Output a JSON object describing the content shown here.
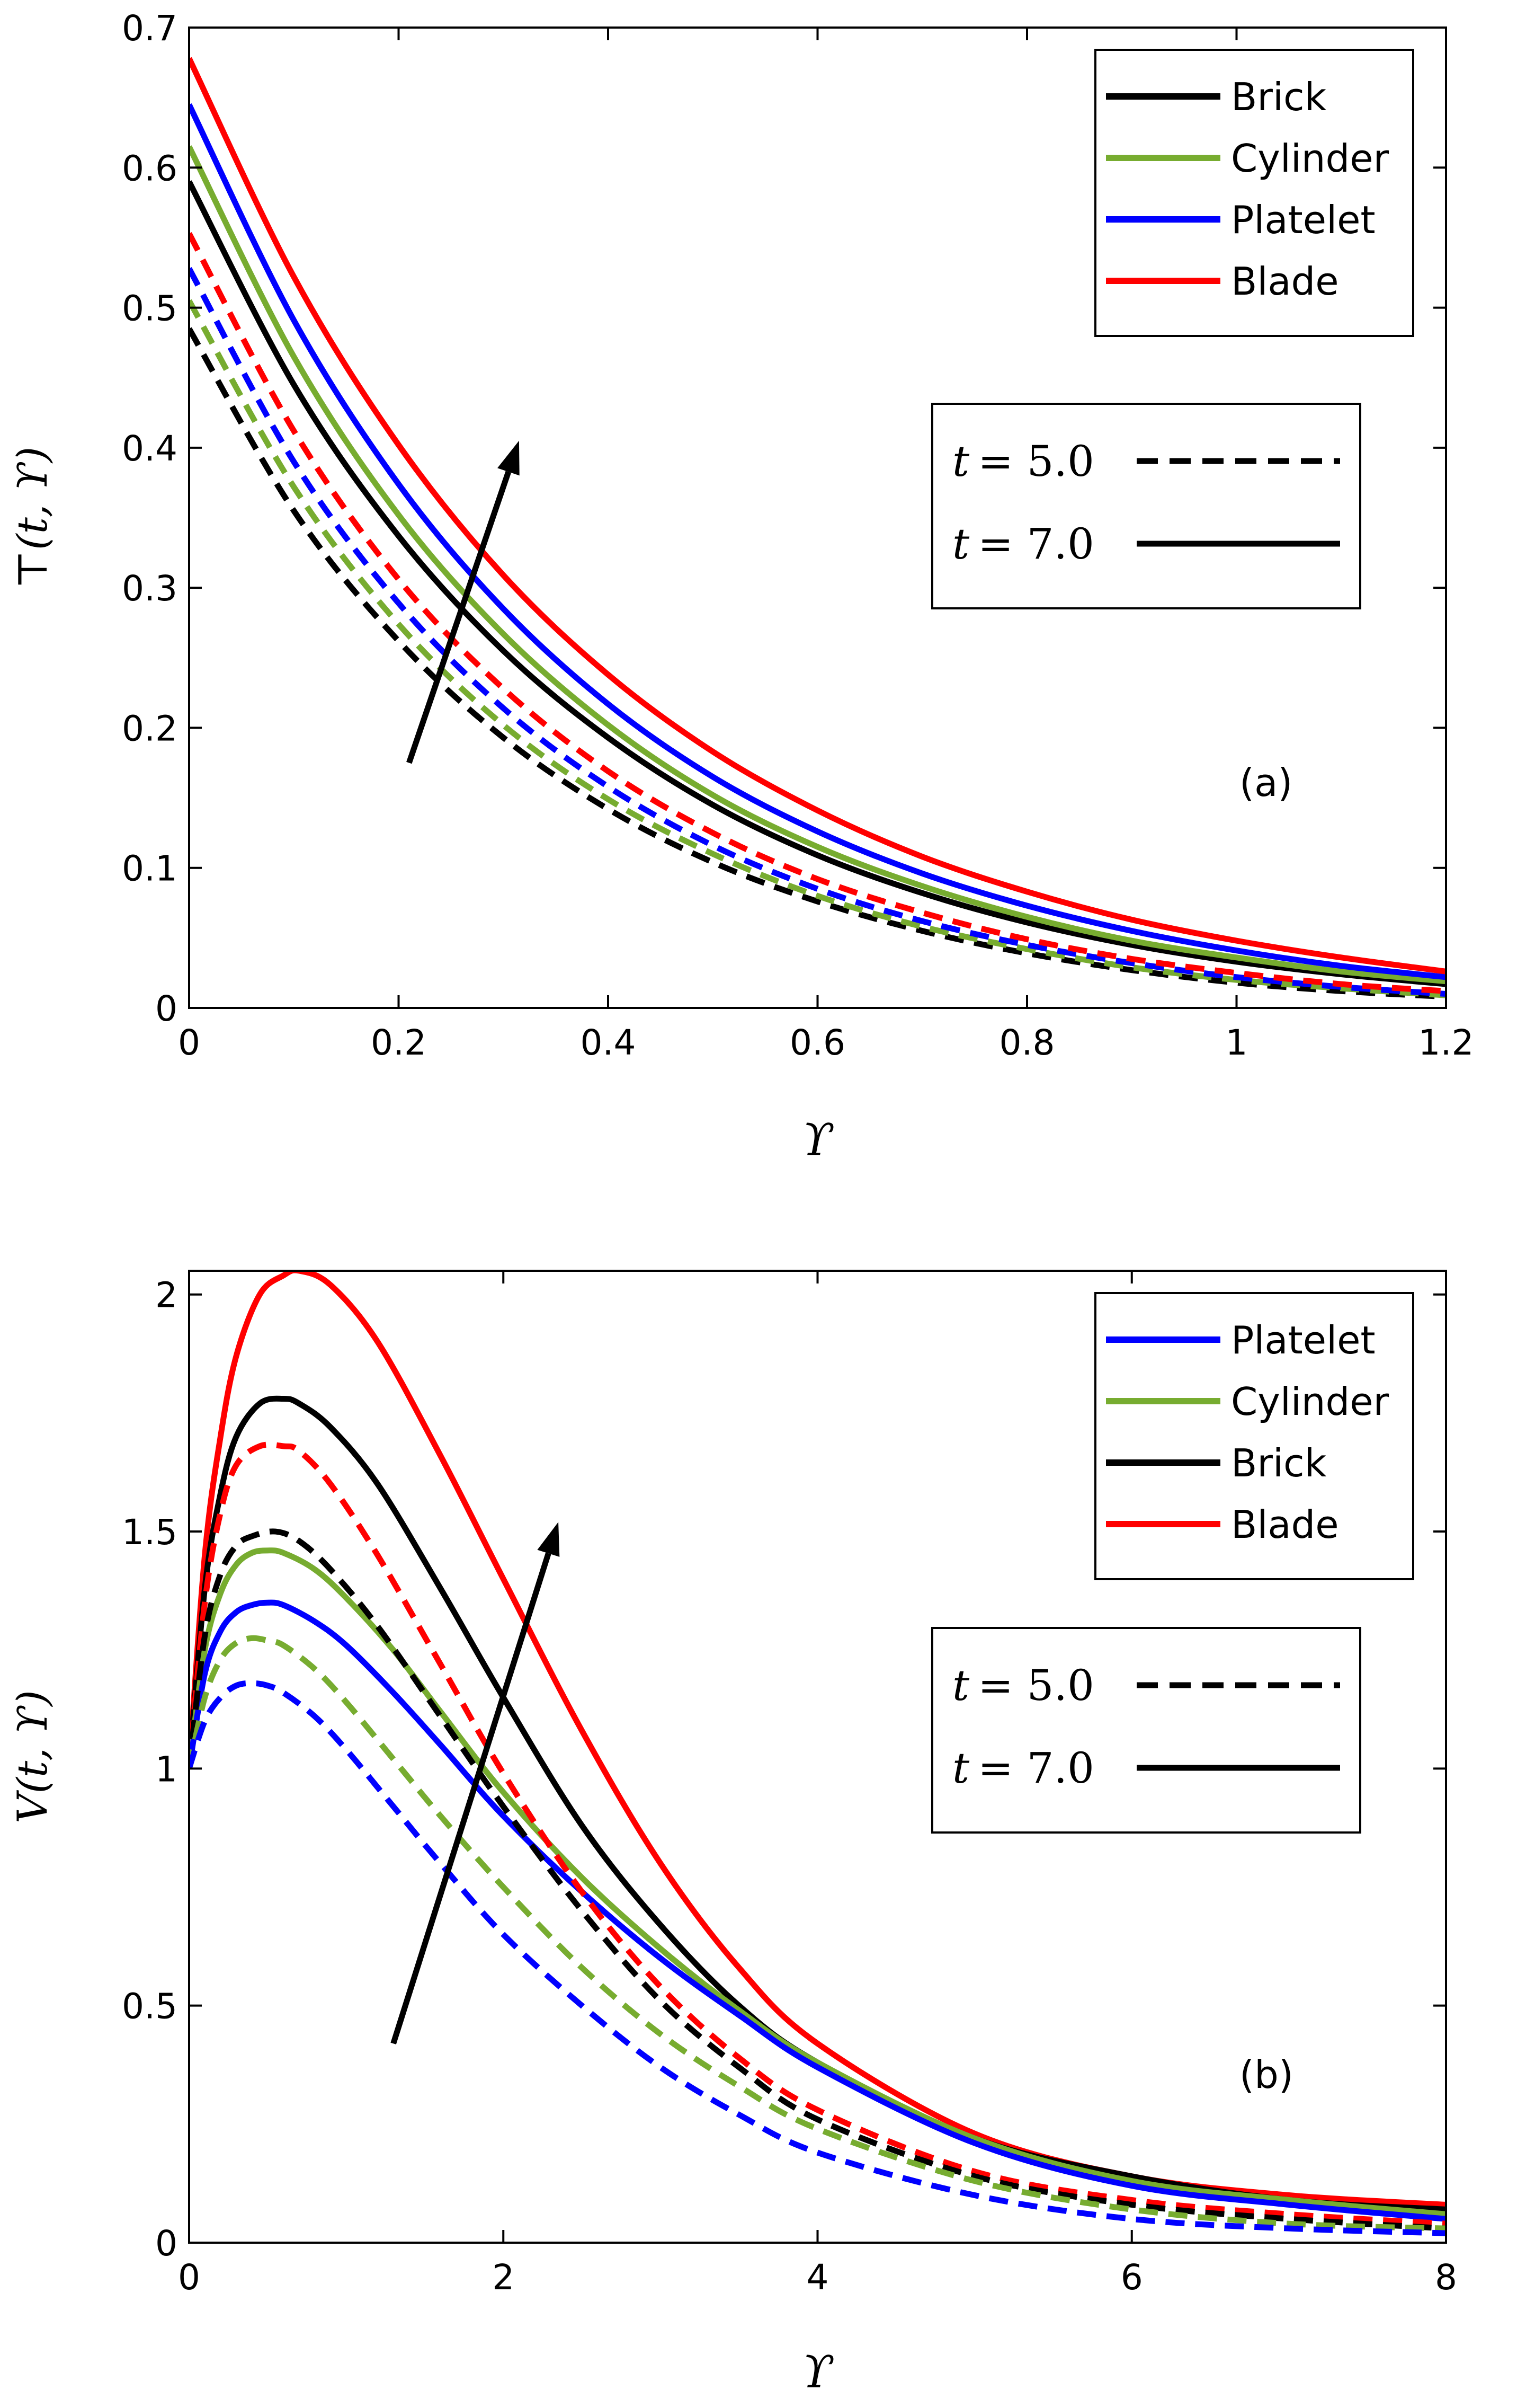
{
  "chart_data": [
    {
      "type": "line",
      "panel_label": "(a)",
      "xlabel": "ϒ",
      "ylabel": "T(t, ϒ)",
      "ylabel_parts": {
        "symbol": "⊤",
        "args": "(t, ϒ)"
      },
      "xlim": [
        0,
        1.2
      ],
      "ylim": [
        0,
        0.7
      ],
      "xticks": [
        0,
        0.2,
        0.4,
        0.6,
        0.8,
        1,
        1.2
      ],
      "xtick_labels": [
        "0",
        "0.2",
        "0.4",
        "0.6",
        "0.8",
        "1",
        "1.2"
      ],
      "yticks": [
        0,
        0.1,
        0.2,
        0.3,
        0.4,
        0.5,
        0.6,
        0.7
      ],
      "ytick_labels": [
        "0",
        "0.1",
        "0.2",
        "0.3",
        "0.4",
        "0.5",
        "0.6",
        "0.7"
      ],
      "legend": [
        {
          "label": "Brick",
          "color": "#000000"
        },
        {
          "label": "Cylinder",
          "color": "#77ac30"
        },
        {
          "label": "Platelet",
          "color": "#0000ff"
        },
        {
          "label": "Blade",
          "color": "#ff0000"
        }
      ],
      "time_legend": [
        {
          "var": "t",
          "value": "= 5.0",
          "style": "dashed"
        },
        {
          "var": "t",
          "value": "= 7.0",
          "style": "solid"
        }
      ],
      "arrow": {
        "from": [
          0.21,
          0.175
        ],
        "to": [
          0.315,
          0.405
        ]
      },
      "series": [
        {
          "name": "Brick",
          "t": 7.0,
          "color": "#000000",
          "style": "solid",
          "x": [
            0,
            0.1,
            0.2,
            0.3,
            0.4,
            0.5,
            0.6,
            0.7,
            0.8,
            0.9,
            1.0,
            1.1,
            1.2
          ],
          "y": [
            0.59,
            0.445,
            0.337,
            0.255,
            0.193,
            0.145,
            0.109,
            0.082,
            0.061,
            0.045,
            0.033,
            0.024,
            0.017
          ]
        },
        {
          "name": "Cylinder",
          "t": 7.0,
          "color": "#77ac30",
          "style": "solid",
          "x": [
            0,
            0.1,
            0.2,
            0.3,
            0.4,
            0.5,
            0.6,
            0.7,
            0.8,
            0.9,
            1.0,
            1.1,
            1.2
          ],
          "y": [
            0.615,
            0.465,
            0.352,
            0.267,
            0.202,
            0.152,
            0.115,
            0.087,
            0.065,
            0.048,
            0.036,
            0.026,
            0.019
          ]
        },
        {
          "name": "Platelet",
          "t": 7.0,
          "color": "#0000ff",
          "style": "solid",
          "x": [
            0,
            0.1,
            0.2,
            0.3,
            0.4,
            0.5,
            0.6,
            0.7,
            0.8,
            0.9,
            1.0,
            1.1,
            1.2
          ],
          "y": [
            0.645,
            0.491,
            0.374,
            0.285,
            0.217,
            0.165,
            0.126,
            0.096,
            0.073,
            0.055,
            0.041,
            0.03,
            0.022
          ]
        },
        {
          "name": "Blade",
          "t": 7.0,
          "color": "#ff0000",
          "style": "solid",
          "x": [
            0,
            0.1,
            0.2,
            0.3,
            0.4,
            0.5,
            0.6,
            0.7,
            0.8,
            0.9,
            1.0,
            1.1,
            1.2
          ],
          "y": [
            0.678,
            0.522,
            0.402,
            0.309,
            0.238,
            0.183,
            0.141,
            0.108,
            0.083,
            0.063,
            0.048,
            0.036,
            0.026
          ]
        },
        {
          "name": "Brick",
          "t": 5.0,
          "color": "#000000",
          "style": "dashed",
          "x": [
            0,
            0.1,
            0.2,
            0.3,
            0.4,
            0.5,
            0.6,
            0.7,
            0.8,
            0.9,
            1.0,
            1.1,
            1.2
          ],
          "y": [
            0.485,
            0.355,
            0.262,
            0.193,
            0.142,
            0.104,
            0.076,
            0.055,
            0.039,
            0.027,
            0.018,
            0.012,
            0.008
          ]
        },
        {
          "name": "Cylinder",
          "t": 5.0,
          "color": "#77ac30",
          "style": "dashed",
          "x": [
            0,
            0.1,
            0.2,
            0.3,
            0.4,
            0.5,
            0.6,
            0.7,
            0.8,
            0.9,
            1.0,
            1.1,
            1.2
          ],
          "y": [
            0.505,
            0.372,
            0.274,
            0.202,
            0.149,
            0.11,
            0.08,
            0.058,
            0.042,
            0.029,
            0.02,
            0.014,
            0.009
          ]
        },
        {
          "name": "Platelet",
          "t": 5.0,
          "color": "#0000ff",
          "style": "dashed",
          "x": [
            0,
            0.1,
            0.2,
            0.3,
            0.4,
            0.5,
            0.6,
            0.7,
            0.8,
            0.9,
            1.0,
            1.1,
            1.2
          ],
          "y": [
            0.528,
            0.39,
            0.289,
            0.214,
            0.158,
            0.116,
            0.085,
            0.062,
            0.045,
            0.032,
            0.022,
            0.015,
            0.01
          ]
        },
        {
          "name": "Blade",
          "t": 5.0,
          "color": "#ff0000",
          "style": "dashed",
          "x": [
            0,
            0.1,
            0.2,
            0.3,
            0.4,
            0.5,
            0.6,
            0.7,
            0.8,
            0.9,
            1.0,
            1.1,
            1.2
          ],
          "y": [
            0.553,
            0.412,
            0.306,
            0.228,
            0.169,
            0.125,
            0.092,
            0.068,
            0.049,
            0.035,
            0.025,
            0.017,
            0.012
          ]
        }
      ]
    },
    {
      "type": "line",
      "panel_label": "(b)",
      "xlabel": "ϒ",
      "ylabel": "V(t, ϒ)",
      "ylabel_parts": {
        "symbol": "V",
        "args": "(t, ϒ)"
      },
      "xlim": [
        0,
        8
      ],
      "ylim": [
        0,
        2.05
      ],
      "xticks": [
        0,
        2,
        4,
        6,
        8
      ],
      "xtick_labels": [
        "0",
        "2",
        "4",
        "6",
        "8"
      ],
      "yticks": [
        0,
        0.5,
        1,
        1.5,
        2
      ],
      "ytick_labels": [
        "0",
        "0.5",
        "1",
        "1.5",
        "2"
      ],
      "legend": [
        {
          "label": "Platelet",
          "color": "#0000ff"
        },
        {
          "label": "Cylinder",
          "color": "#77ac30"
        },
        {
          "label": "Brick",
          "color": "#000000"
        },
        {
          "label": "Blade",
          "color": "#ff0000"
        }
      ],
      "time_legend": [
        {
          "var": "t",
          "value": "= 5.0",
          "style": "dashed"
        },
        {
          "var": "t",
          "value": "= 7.0",
          "style": "solid"
        }
      ],
      "arrow": {
        "from": [
          1.3,
          0.42
        ],
        "to": [
          2.35,
          1.52
        ]
      },
      "series": [
        {
          "name": "Blade",
          "t": 7.0,
          "color": "#ff0000",
          "style": "solid",
          "x": [
            0,
            0.1,
            0.2,
            0.3,
            0.45,
            0.6,
            0.7,
            0.9,
            1.2,
            1.6,
            2.0,
            2.5,
            3.0,
            3.5,
            4.0,
            5.0,
            6.0,
            7.0,
            8.0
          ],
          "y": [
            1.0,
            1.45,
            1.7,
            1.87,
            2.0,
            2.04,
            2.05,
            2.02,
            1.9,
            1.66,
            1.4,
            1.08,
            0.8,
            0.58,
            0.42,
            0.23,
            0.14,
            0.1,
            0.08
          ]
        },
        {
          "name": "Brick",
          "t": 7.0,
          "color": "#000000",
          "style": "solid",
          "x": [
            0,
            0.1,
            0.2,
            0.3,
            0.45,
            0.6,
            0.7,
            0.9,
            1.2,
            1.6,
            2.0,
            2.5,
            3.0,
            3.5,
            4.0,
            5.0,
            6.0,
            7.0,
            8.0
          ],
          "y": [
            1.0,
            1.38,
            1.58,
            1.7,
            1.77,
            1.78,
            1.77,
            1.72,
            1.6,
            1.38,
            1.15,
            0.88,
            0.67,
            0.5,
            0.38,
            0.22,
            0.14,
            0.09,
            0.07
          ]
        },
        {
          "name": "Cylinder",
          "t": 7.0,
          "color": "#77ac30",
          "style": "solid",
          "x": [
            0,
            0.1,
            0.2,
            0.3,
            0.4,
            0.5,
            0.6,
            0.8,
            1.0,
            1.3,
            1.6,
            2.0,
            2.5,
            3.0,
            3.5,
            4.0,
            5.0,
            6.0,
            7.0,
            8.0
          ],
          "y": [
            1.0,
            1.25,
            1.37,
            1.43,
            1.455,
            1.46,
            1.455,
            1.42,
            1.36,
            1.25,
            1.12,
            0.95,
            0.77,
            0.62,
            0.49,
            0.38,
            0.22,
            0.13,
            0.09,
            0.06
          ]
        },
        {
          "name": "Platelet",
          "t": 7.0,
          "color": "#0000ff",
          "style": "solid",
          "x": [
            0,
            0.1,
            0.2,
            0.3,
            0.4,
            0.5,
            0.6,
            0.8,
            1.0,
            1.3,
            1.6,
            2.0,
            2.5,
            3.0,
            3.5,
            4.0,
            5.0,
            6.0,
            7.0,
            8.0
          ],
          "y": [
            1.0,
            1.2,
            1.29,
            1.33,
            1.345,
            1.35,
            1.345,
            1.31,
            1.26,
            1.16,
            1.05,
            0.9,
            0.74,
            0.6,
            0.48,
            0.37,
            0.21,
            0.12,
            0.08,
            0.05
          ]
        },
        {
          "name": "Blade",
          "t": 5.0,
          "color": "#ff0000",
          "style": "dashed",
          "x": [
            0,
            0.1,
            0.2,
            0.3,
            0.45,
            0.6,
            0.7,
            0.9,
            1.2,
            1.6,
            2.0,
            2.5,
            3.0,
            3.5,
            4.0,
            5.0,
            6.0,
            7.0,
            8.0
          ],
          "y": [
            1.0,
            1.35,
            1.54,
            1.64,
            1.68,
            1.68,
            1.67,
            1.6,
            1.45,
            1.22,
            0.99,
            0.74,
            0.54,
            0.39,
            0.28,
            0.15,
            0.09,
            0.06,
            0.04
          ]
        },
        {
          "name": "Brick",
          "t": 5.0,
          "color": "#000000",
          "style": "dashed",
          "x": [
            0,
            0.1,
            0.2,
            0.3,
            0.4,
            0.55,
            0.7,
            0.9,
            1.2,
            1.6,
            2.0,
            2.5,
            3.0,
            3.5,
            4.0,
            5.0,
            6.0,
            7.0,
            8.0
          ],
          "y": [
            1.0,
            1.28,
            1.41,
            1.47,
            1.49,
            1.5,
            1.48,
            1.42,
            1.3,
            1.11,
            0.92,
            0.7,
            0.51,
            0.37,
            0.26,
            0.14,
            0.08,
            0.05,
            0.03
          ]
        },
        {
          "name": "Cylinder",
          "t": 5.0,
          "color": "#77ac30",
          "style": "dashed",
          "x": [
            0,
            0.1,
            0.2,
            0.3,
            0.4,
            0.5,
            0.6,
            0.8,
            1.0,
            1.3,
            1.6,
            2.0,
            2.5,
            3.0,
            3.5,
            4.0,
            5.0,
            6.0,
            7.0,
            8.0
          ],
          "y": [
            1.0,
            1.15,
            1.23,
            1.265,
            1.275,
            1.27,
            1.26,
            1.21,
            1.14,
            1.02,
            0.9,
            0.75,
            0.58,
            0.44,
            0.33,
            0.24,
            0.13,
            0.07,
            0.04,
            0.03
          ]
        },
        {
          "name": "Platelet",
          "t": 5.0,
          "color": "#0000ff",
          "style": "dashed",
          "x": [
            0,
            0.1,
            0.2,
            0.3,
            0.4,
            0.5,
            0.6,
            0.8,
            1.0,
            1.3,
            1.6,
            2.0,
            2.5,
            3.0,
            3.5,
            4.0,
            5.0,
            6.0,
            7.0,
            8.0
          ],
          "y": [
            1.0,
            1.1,
            1.15,
            1.175,
            1.18,
            1.175,
            1.16,
            1.11,
            1.04,
            0.92,
            0.8,
            0.65,
            0.5,
            0.37,
            0.27,
            0.19,
            0.1,
            0.05,
            0.03,
            0.02
          ]
        }
      ]
    }
  ]
}
